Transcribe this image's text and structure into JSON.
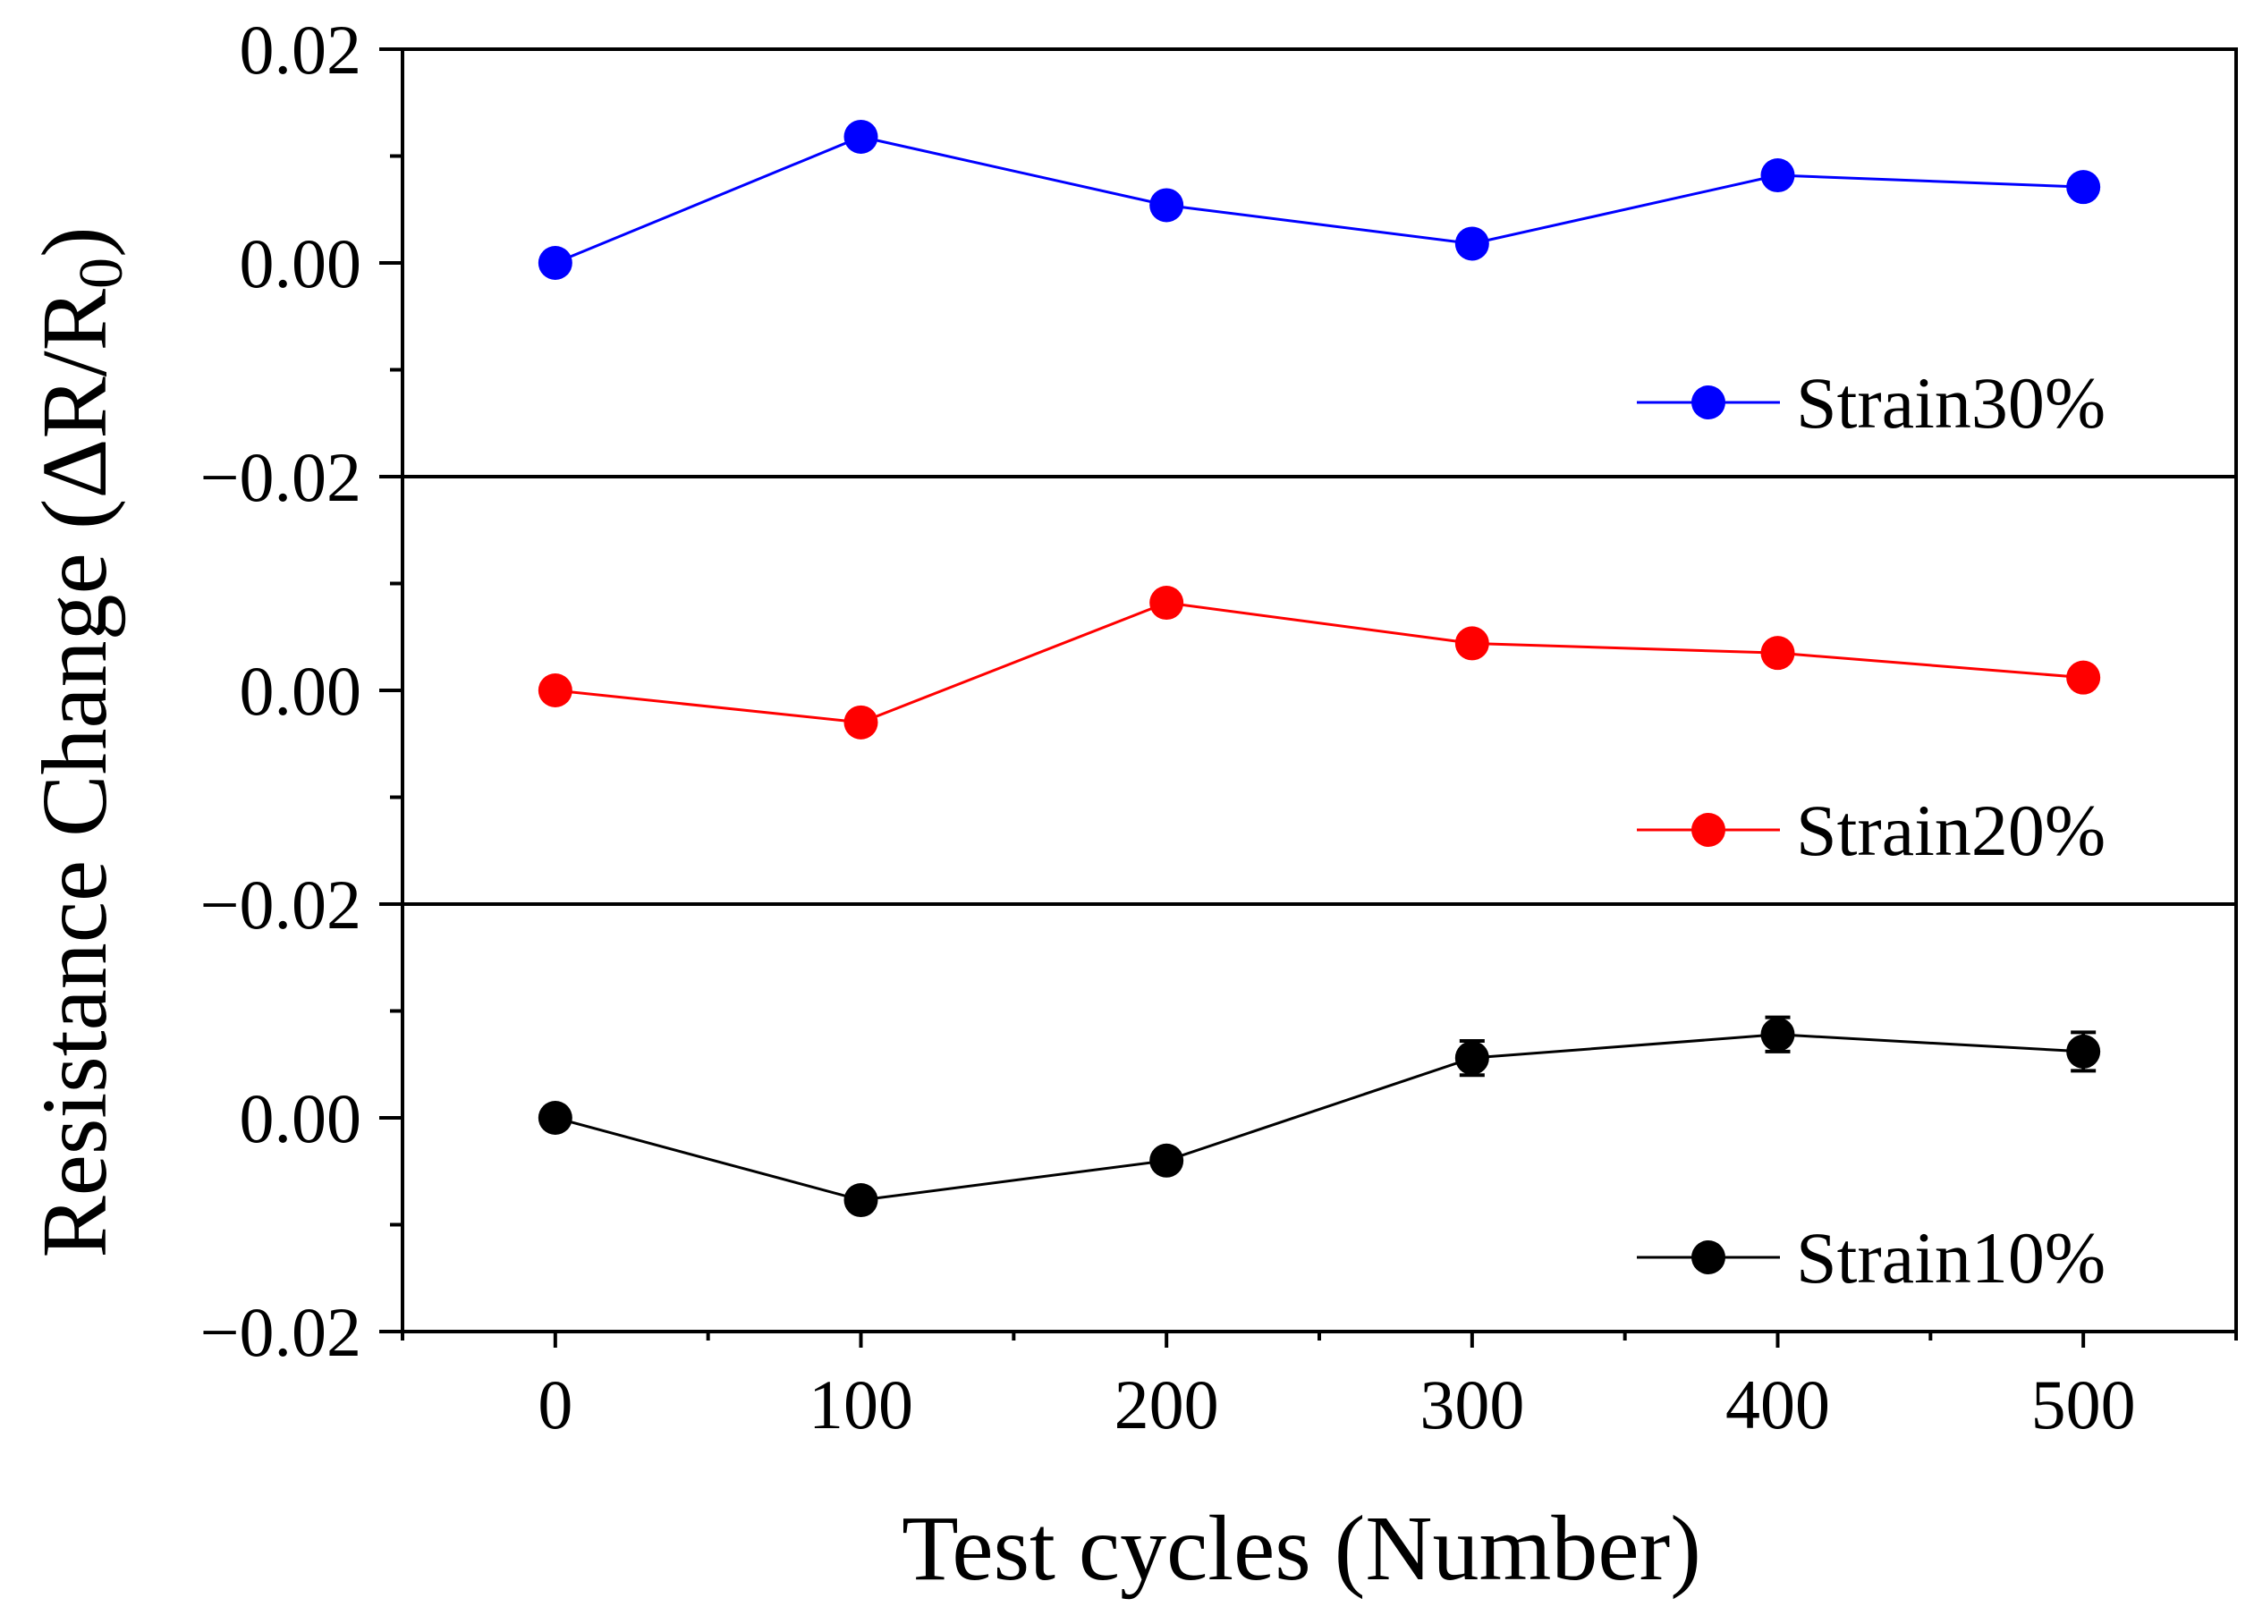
{
  "chart_data": {
    "type": "line",
    "layout": "stacked-panels",
    "xlabel": "Test cycles (Number)",
    "ylabel": {
      "main": "Resistance Change (ΔR/R",
      "subscript": "0",
      "close": ")"
    },
    "xlim": [
      -50,
      550
    ],
    "x": [
      0,
      100,
      200,
      300,
      400,
      500
    ],
    "x_tick_labels": [
      "0",
      "100",
      "200",
      "300",
      "400",
      "500"
    ],
    "panels": [
      {
        "name": "Strain30%",
        "color": "#0000ff",
        "ylim": [
          -0.02,
          0.02
        ],
        "y_tick_labels": [
          "0.02",
          "0.00",
          "−0.02"
        ],
        "y_tick_values": [
          0.02,
          0.0,
          -0.02
        ],
        "values": [
          0.0,
          0.0118,
          0.0054,
          0.0018,
          0.0082,
          0.0071
        ],
        "errors": [
          0.0,
          0.0,
          0.0,
          0.0,
          0.0,
          0.0
        ],
        "legend": "Strain30%"
      },
      {
        "name": "Strain20%",
        "color": "#ff0000",
        "ylim": [
          -0.02,
          0.02
        ],
        "y_tick_labels": [
          "",
          "0.00",
          "−0.02"
        ],
        "y_tick_values": [
          0.02,
          0.0,
          -0.02
        ],
        "values": [
          0.0,
          -0.003,
          0.0082,
          0.0044,
          0.0035,
          0.0012
        ],
        "errors": [
          0.0,
          0.0,
          0.0,
          0.0,
          0.0,
          0.0
        ],
        "legend": "Strain20%"
      },
      {
        "name": "Strain10%",
        "color": "#000000",
        "ylim": [
          -0.02,
          0.02
        ],
        "y_tick_labels": [
          "",
          "0.00",
          "−0.02"
        ],
        "y_tick_values": [
          0.02,
          0.0,
          -0.02
        ],
        "values": [
          0.0,
          -0.0077,
          -0.004,
          0.0056,
          0.0078,
          0.0062
        ],
        "errors": [
          0.0,
          0.0,
          0.0,
          0.0016,
          0.0016,
          0.0018
        ],
        "legend": "Strain10%"
      }
    ]
  }
}
